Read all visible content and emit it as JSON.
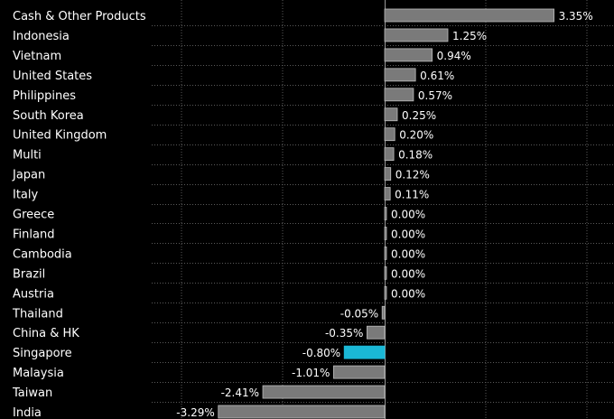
{
  "chart_data": {
    "type": "bar",
    "orientation": "horizontal",
    "categories": [
      "Cash & Other Products",
      "Indonesia",
      "Vietnam",
      "United States",
      "Philippines",
      "South Korea",
      "United Kingdom",
      "Multi",
      "Japan",
      "Italy",
      "Greece",
      "Finland",
      "Cambodia",
      "Brazil",
      "Austria",
      "Thailand",
      "China & HK",
      "Singapore",
      "Malaysia",
      "Taiwan",
      "India"
    ],
    "values": [
      3.35,
      1.25,
      0.94,
      0.61,
      0.57,
      0.25,
      0.2,
      0.18,
      0.12,
      0.11,
      0.0,
      0.0,
      0.0,
      0.0,
      0.0,
      -0.05,
      -0.35,
      -0.8,
      -1.01,
      -2.41,
      -3.29
    ],
    "value_labels": [
      "3.35%",
      "1.25%",
      "0.94%",
      "0.61%",
      "0.57%",
      "0.25%",
      "0.20%",
      "0.18%",
      "0.12%",
      "0.11%",
      "0.00%",
      "0.00%",
      "0.00%",
      "0.00%",
      "0.00%",
      "-0.05%",
      "-0.35%",
      "-0.80%",
      "-1.01%",
      "-2.41%",
      "-3.29%"
    ],
    "highlight_category": "Singapore",
    "grid": true,
    "colors": {
      "background": "#000000",
      "bar": "#7a7a7a",
      "bar_border": "#bdbdbd",
      "highlight": "#1ab8d6",
      "grid": "#5a5a5a",
      "text": "#ffffff"
    }
  }
}
